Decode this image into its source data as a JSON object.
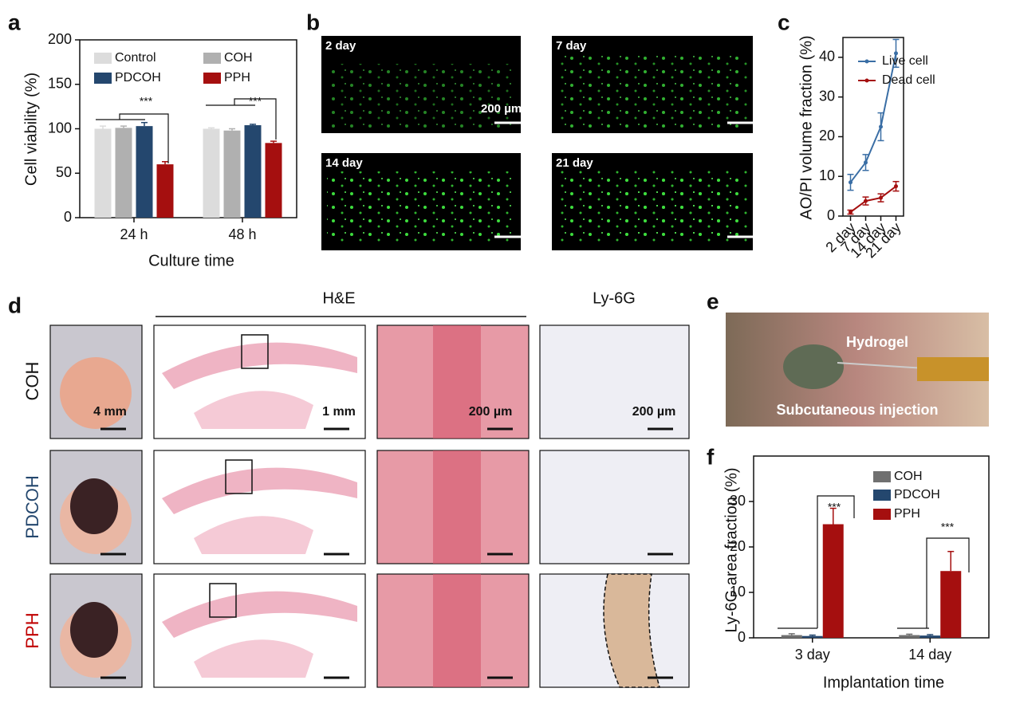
{
  "panel_labels": [
    "a",
    "b",
    "c",
    "d",
    "e",
    "f"
  ],
  "chart_data": [
    {
      "type": "bar",
      "ylabel": "Cell viability (%)",
      "xlabel": "Culture time",
      "categories": [
        "24 h",
        "48 h"
      ],
      "series": [
        {
          "name": "Control",
          "color": "#dcdcdc",
          "values": [
            100,
            100
          ],
          "errors": [
            3,
            1
          ]
        },
        {
          "name": "COH",
          "color": "#b0b0b0",
          "values": [
            101,
            98
          ],
          "errors": [
            2,
            2
          ]
        },
        {
          "name": "PDCOH",
          "color": "#24476e",
          "values": [
            103,
            104
          ],
          "errors": [
            4,
            1
          ]
        },
        {
          "name": "PPH",
          "color": "#a50f0f",
          "values": [
            60,
            84
          ],
          "errors": [
            3,
            2
          ]
        }
      ],
      "ylim": [
        0,
        200
      ],
      "yticks": [
        0,
        50,
        100,
        150,
        200
      ],
      "annotations": [
        "***",
        "***"
      ]
    },
    {
      "type": "line",
      "ylabel": "AO/PI volume fraction (%)",
      "categories": [
        "2 day",
        "7 day",
        "14 day",
        "21 day"
      ],
      "series": [
        {
          "name": "Live cell",
          "color": "#3a6ea5",
          "values": [
            8.5,
            13.5,
            22.5,
            41
          ],
          "errors": [
            2,
            2,
            3.5,
            3.5
          ]
        },
        {
          "name": "Dead cell",
          "color": "#a50f0f",
          "values": [
            1,
            3.8,
            4.6,
            7.5
          ],
          "errors": [
            0.5,
            1,
            1,
            1.2
          ]
        }
      ],
      "ylim": [
        0,
        45
      ],
      "yticks": [
        0,
        10,
        20,
        30,
        40
      ]
    },
    {
      "type": "bar",
      "ylabel": "Ly-6G area fraction (%)",
      "xlabel": "Implantation time",
      "categories": [
        "3 day",
        "14 day"
      ],
      "series": [
        {
          "name": "COH",
          "color": "#707070",
          "values": [
            0.6,
            0.6
          ],
          "errors": [
            0.3,
            0.2
          ]
        },
        {
          "name": "PDCOH",
          "color": "#24476e",
          "values": [
            0.4,
            0.5
          ],
          "errors": [
            0.2,
            0.2
          ]
        },
        {
          "name": "PPH",
          "color": "#a50f0f",
          "values": [
            25,
            14.7
          ],
          "errors": [
            3.5,
            4.3
          ]
        }
      ],
      "ylim": [
        0,
        40
      ],
      "yticks": [
        0,
        10,
        20,
        30
      ],
      "annotations": [
        "***",
        "***"
      ]
    }
  ],
  "panel_b": {
    "timepoints": [
      "2 day",
      "7 day",
      "14 day",
      "21 day"
    ],
    "scale_bar": "200 µm"
  },
  "panel_d": {
    "header_he": "H&E",
    "header_ly": "Ly-6G",
    "rows": [
      "COH",
      "PDCOH",
      "PPH"
    ],
    "scale_bars": [
      "4 mm",
      "1 mm",
      "200 µm",
      "200 µm"
    ]
  },
  "panel_e": {
    "labels": [
      "Hydrogel",
      "Subcutaneous injection"
    ]
  }
}
